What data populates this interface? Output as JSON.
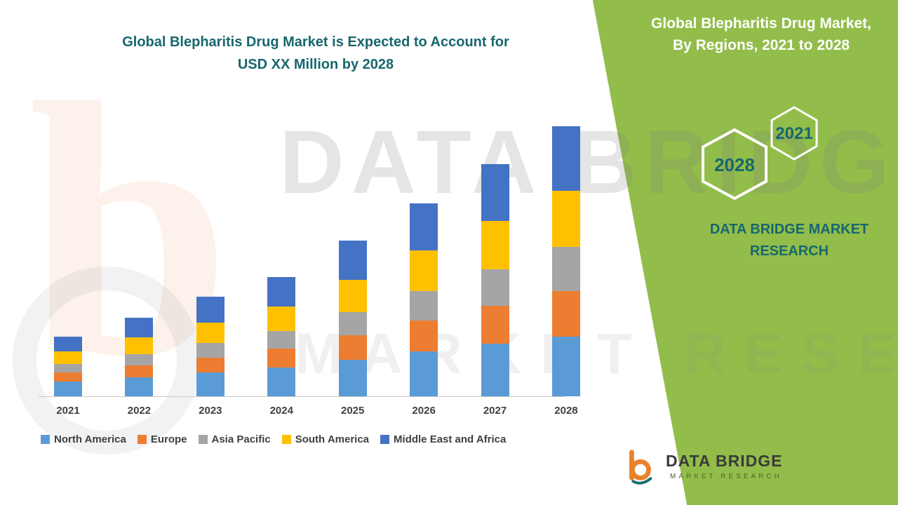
{
  "page": {
    "title_line1": "Global Blepharitis Drug Market is Expected to Account for",
    "title_line2": "USD XX Million by 2028"
  },
  "side_panel": {
    "heading": "Global Blepharitis Drug Market, By Regions, 2021 to 2028",
    "hexagon_year_top": "2021",
    "hexagon_year_bottom": "2028",
    "brand_text": "DATA BRIDGE MARKET RESEARCH",
    "bg_color": "#92bd4a",
    "accent_text_color": "#17676e"
  },
  "watermark": {
    "line1": "DATA BRIDGE",
    "line2": "MARKET RESEARCH",
    "logo_glyph": "b"
  },
  "logo": {
    "name": "DATA BRIDGE",
    "subtitle": "MARKET RESEARCH"
  },
  "chart_data": {
    "type": "bar",
    "stacked": true,
    "title": "Global Blepharitis Drug Market is Expected to Account for USD XX Million by 2028",
    "xlabel": "",
    "ylabel": "",
    "y_axis_visible": false,
    "legend_position": "bottom",
    "units": "relative (values unlabeled in chart, shown as USD XX Million)",
    "categories": [
      "2021",
      "2022",
      "2023",
      "2024",
      "2025",
      "2026",
      "2027",
      "2028"
    ],
    "series": [
      {
        "name": "North America",
        "color": "#5B9BD5",
        "values": [
          21,
          27,
          34,
          41,
          52,
          64,
          74,
          84
        ]
      },
      {
        "name": "Europe",
        "color": "#ED7D31",
        "values": [
          13,
          17,
          21,
          26,
          34,
          43,
          54,
          65
        ]
      },
      {
        "name": "Asia Pacific",
        "color": "#A5A5A5",
        "values": [
          12,
          16,
          20,
          25,
          33,
          42,
          52,
          62
        ]
      },
      {
        "name": "South America",
        "color": "#FFC000",
        "values": [
          18,
          23,
          29,
          35,
          46,
          57,
          68,
          80
        ]
      },
      {
        "name": "Middle East and Africa",
        "color": "#4472C4",
        "values": [
          20,
          28,
          37,
          42,
          55,
          67,
          80,
          91
        ]
      }
    ]
  }
}
